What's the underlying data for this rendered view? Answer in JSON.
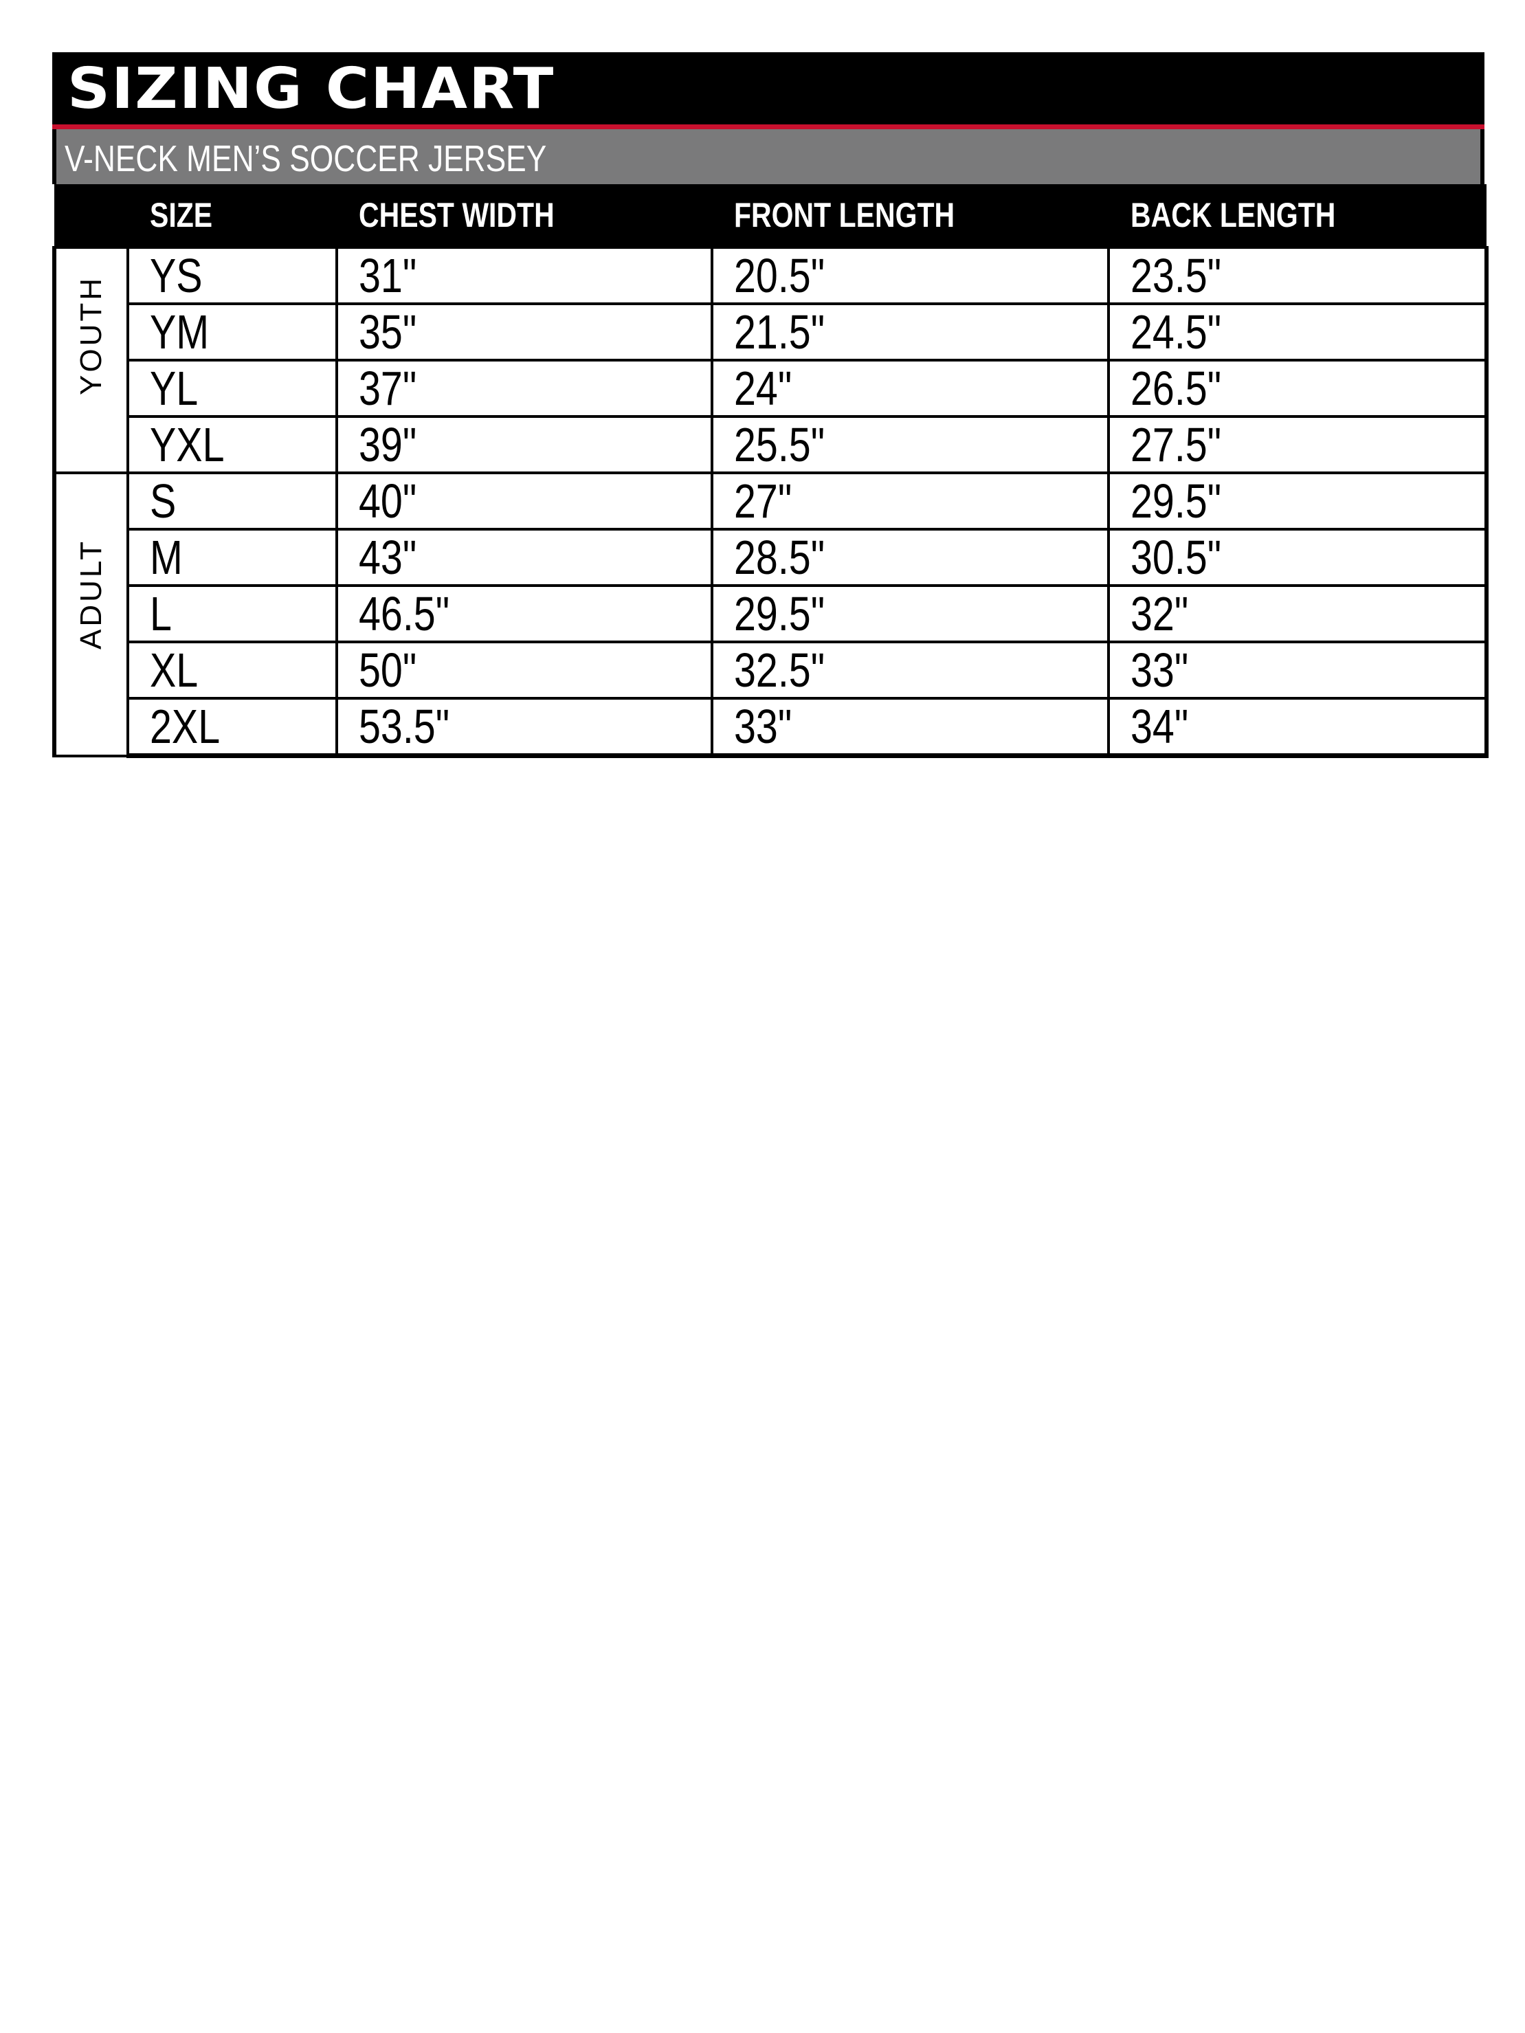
{
  "title": "SIZING CHART",
  "subtitle": "V-NECK MEN’S SOCCER JERSEY",
  "colors": {
    "accent_line": "#c8102e",
    "subtitle_bar": "#7a7a7b",
    "header": "#000000"
  },
  "table": {
    "headers": [
      "SIZE",
      "CHEST WIDTH",
      "FRONT LENGTH",
      "BACK LENGTH"
    ],
    "groups": [
      {
        "label": "YOUTH",
        "rows": [
          [
            "YS",
            "31\"",
            "20.5\"",
            "23.5\""
          ],
          [
            "YM",
            "35\"",
            "21.5\"",
            "24.5\""
          ],
          [
            "YL",
            "37\"",
            "24\"",
            "26.5\""
          ],
          [
            "YXL",
            "39\"",
            "25.5\"",
            "27.5\""
          ]
        ]
      },
      {
        "label": "ADULT",
        "rows": [
          [
            "S",
            "40\"",
            "27\"",
            "29.5\""
          ],
          [
            "M",
            "43\"",
            "28.5\"",
            "30.5\""
          ],
          [
            "L",
            "46.5\"",
            "29.5\"",
            "32\""
          ],
          [
            "XL",
            "50\"",
            "32.5\"",
            "33\""
          ],
          [
            "2XL",
            "53.5\"",
            "33\"",
            "34\""
          ]
        ]
      }
    ]
  }
}
